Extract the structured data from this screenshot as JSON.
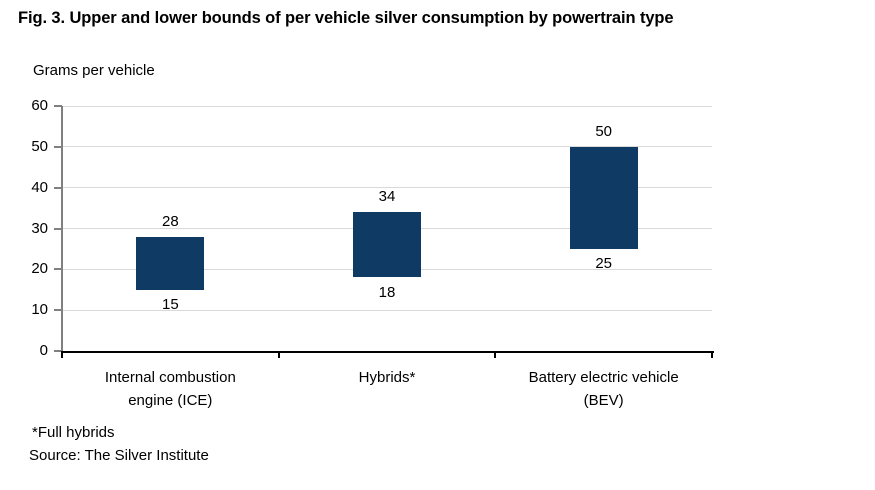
{
  "title": "Fig. 3. Upper and lower bounds of per vehicle silver consumption by powertrain type",
  "y_axis_title": "Grams per vehicle",
  "footnotes": {
    "note": "*Full hybrids",
    "source": "Source: The Silver Institute"
  },
  "colors": {
    "bar": "#0f3a63",
    "gridline": "#d9d9d9",
    "y_axis": "#808080",
    "x_axis": "#000000",
    "text": "#000000"
  },
  "chart_data": {
    "type": "bar",
    "subtype": "floating-range-bars",
    "title": "Fig. 3. Upper and lower bounds of per vehicle silver consumption by powertrain type",
    "ylabel": "Grams per vehicle",
    "xlabel": "",
    "categories": [
      "Internal combustion engine (ICE)",
      "Hybrids*",
      "Battery electric vehicle (BEV)"
    ],
    "category_label_lines": [
      [
        "Internal combustion",
        "engine (ICE)"
      ],
      [
        "Hybrids*"
      ],
      [
        "Battery electric vehicle",
        "(BEV)"
      ]
    ],
    "series": [
      {
        "name": "Lower bound",
        "values": [
          15,
          18,
          25
        ]
      },
      {
        "name": "Upper bound",
        "values": [
          28,
          34,
          50
        ]
      }
    ],
    "bars": [
      {
        "category": "Internal combustion engine (ICE)",
        "low": 15,
        "high": 28
      },
      {
        "category": "Hybrids*",
        "low": 18,
        "high": 34
      },
      {
        "category": "Battery electric vehicle (BEV)",
        "low": 25,
        "high": 50
      }
    ],
    "ylim": [
      0,
      60
    ],
    "yticks": [
      0,
      10,
      20,
      30,
      40,
      50,
      60
    ],
    "grid": true,
    "legend": false,
    "annotations": [
      "*Full hybrids",
      "Source: The Silver Institute"
    ]
  }
}
